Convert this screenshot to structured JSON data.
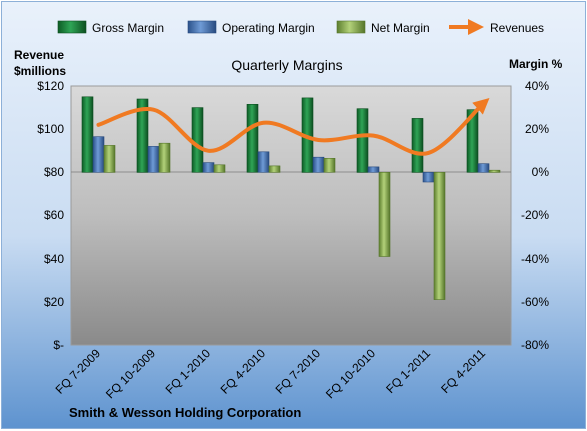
{
  "chart_data": {
    "type": "bar",
    "title": "Quarterly Margins",
    "footer": "Smith & Wesson Holding Corporation",
    "left_axis_title_line1": "Revenue",
    "left_axis_title_line2": "$millions",
    "right_axis_title": "Margin %",
    "categories": [
      "FQ 7-2009",
      "FQ 10-2009",
      "FQ 1-2010",
      "FQ 4-2010",
      "FQ 7-2010",
      "FQ 10-2010",
      "FQ 1-2011",
      "FQ 4-2011"
    ],
    "left_ticks": [
      "$120",
      "$100",
      "$80",
      "$60",
      "$40",
      "$20",
      "$-"
    ],
    "right_ticks": [
      "40%",
      "20%",
      "0%",
      "-20%",
      "-40%",
      "-60%",
      "-80%"
    ],
    "left_range": [
      0,
      120
    ],
    "right_range": [
      -80,
      40
    ],
    "legend_position": "top",
    "grid": false,
    "series": [
      {
        "name": "Gross Margin",
        "kind": "bar",
        "axis": "right",
        "color": "#1f7a3a",
        "values": [
          35,
          34,
          30,
          31.5,
          34.5,
          29.5,
          25,
          29
        ]
      },
      {
        "name": "Operating Margin",
        "kind": "bar",
        "axis": "right",
        "color": "#3f6fb0",
        "values": [
          16.5,
          12,
          4.5,
          9.5,
          7,
          2.5,
          -4.5,
          4
        ]
      },
      {
        "name": "Net Margin",
        "kind": "bar",
        "axis": "right",
        "color": "#7fa34a",
        "values": [
          12.5,
          13.5,
          3.5,
          3,
          6.5,
          -39,
          -59,
          1
        ]
      },
      {
        "name": "Revenues",
        "kind": "line",
        "axis": "left",
        "color": "#f07a22",
        "values": [
          102,
          109,
          90,
          103,
          95,
          97,
          89,
          112
        ]
      }
    ]
  }
}
